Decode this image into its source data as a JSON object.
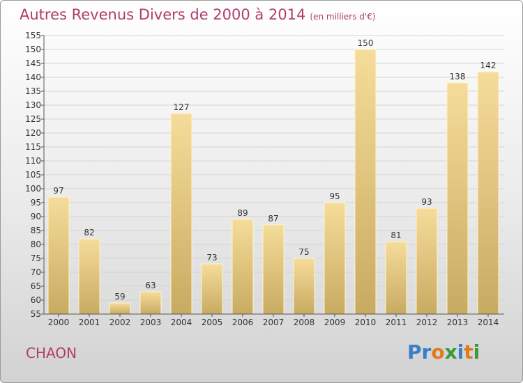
{
  "title": "Autres Revenus Divers de 2000 à 2014",
  "title_unit": "(en milliers d'€)",
  "city": "CHAON",
  "logo": {
    "text": "Proxiti",
    "letters": [
      {
        "ch": "P",
        "color": "#3a7fc4"
      },
      {
        "ch": "r",
        "color": "#3a7fc4"
      },
      {
        "ch": "o",
        "color": "#e07a1f"
      },
      {
        "ch": "x",
        "color": "#3a9a3a"
      },
      {
        "ch": "i",
        "color": "#3a7fc4"
      },
      {
        "ch": "t",
        "color": "#e07a1f"
      },
      {
        "ch": "i",
        "color": "#3a9a3a"
      }
    ]
  },
  "colors": {
    "title": "#b33b6e",
    "bar_light": "#f6dc9a",
    "bar_dark": "#c8ab62",
    "bar_edge": "#fff4c8"
  },
  "chart_data": {
    "type": "bar",
    "categories": [
      "2000",
      "2001",
      "2002",
      "2003",
      "2004",
      "2005",
      "2006",
      "2007",
      "2008",
      "2009",
      "2010",
      "2011",
      "2012",
      "2013",
      "2014"
    ],
    "values": [
      97,
      82,
      59,
      63,
      127,
      73,
      89,
      87,
      75,
      95,
      150,
      81,
      93,
      138,
      142
    ],
    "ylim": [
      55,
      155
    ],
    "yticks": [
      55,
      60,
      65,
      70,
      75,
      80,
      85,
      90,
      95,
      100,
      105,
      110,
      115,
      120,
      125,
      130,
      135,
      140,
      145,
      150,
      155
    ],
    "grid": true,
    "xlabel": "",
    "ylabel": ""
  }
}
